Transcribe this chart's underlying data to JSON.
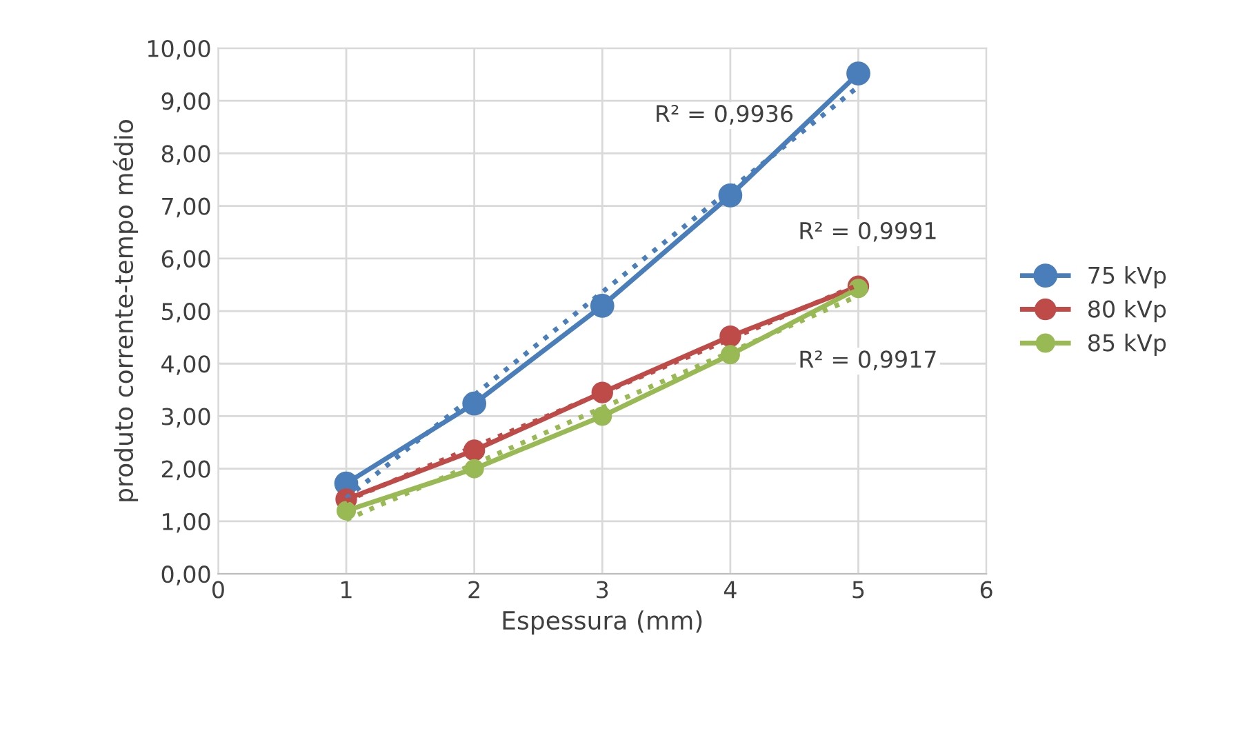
{
  "chart_data": {
    "type": "line",
    "xlabel": "Espessura (mm)",
    "ylabel": "produto corrente-tempo médio",
    "x": [
      1,
      2,
      3,
      4,
      5
    ],
    "series": [
      {
        "name": "75 kVp",
        "color": "#4a7ebb",
        "values": [
          1.72,
          3.24,
          5.1,
          7.2,
          9.52
        ],
        "marker": "circle",
        "line_style": "solid"
      },
      {
        "name": "80 kVp",
        "color": "#be4b48",
        "values": [
          1.42,
          2.35,
          3.45,
          4.52,
          5.47
        ],
        "marker": "circle",
        "line_style": "solid"
      },
      {
        "name": "85 kVp",
        "color": "#98b954",
        "values": [
          1.2,
          2.0,
          3.0,
          4.17,
          5.43
        ],
        "marker": "circle",
        "line_style": "solid"
      },
      {
        "color": "#4a7ebb",
        "x": [
          1,
          2,
          3,
          4,
          5
        ],
        "values": [
          1.44,
          3.4,
          5.36,
          7.31,
          9.27
        ],
        "marker": "none",
        "line_style": "dotted"
      },
      {
        "color": "#be4b48",
        "x": [
          1,
          2,
          3,
          4,
          5
        ],
        "values": [
          1.39,
          2.42,
          3.44,
          4.47,
          5.5
        ],
        "marker": "none",
        "line_style": "dotted"
      },
      {
        "color": "#98b954",
        "x": [
          1,
          2,
          3,
          4,
          5
        ],
        "values": [
          1.03,
          2.09,
          3.16,
          4.22,
          5.29
        ],
        "marker": "none",
        "line_style": "dotted"
      }
    ],
    "annotations": [
      "R² = 0,9936",
      "R² = 0,9991",
      "R² = 0,9917"
    ],
    "xlim": [
      0,
      6
    ],
    "xticks": [
      0,
      1,
      2,
      3,
      4,
      5,
      6
    ],
    "ylim": [
      0,
      10
    ],
    "yticks": [
      {
        "value": 0,
        "label": "0,00"
      },
      {
        "value": 1,
        "label": "1,00"
      },
      {
        "value": 2,
        "label": "2,00"
      },
      {
        "value": 3,
        "label": "3,00"
      },
      {
        "value": 4,
        "label": "4,00"
      },
      {
        "value": 5,
        "label": "5,00"
      },
      {
        "value": 6,
        "label": "6,00"
      },
      {
        "value": 7,
        "label": "7,00"
      },
      {
        "value": 8,
        "label": "8,00"
      },
      {
        "value": 9,
        "label": "9,00"
      },
      {
        "value": 10,
        "label": "10,00"
      }
    ],
    "grid": true,
    "legend": "right"
  }
}
